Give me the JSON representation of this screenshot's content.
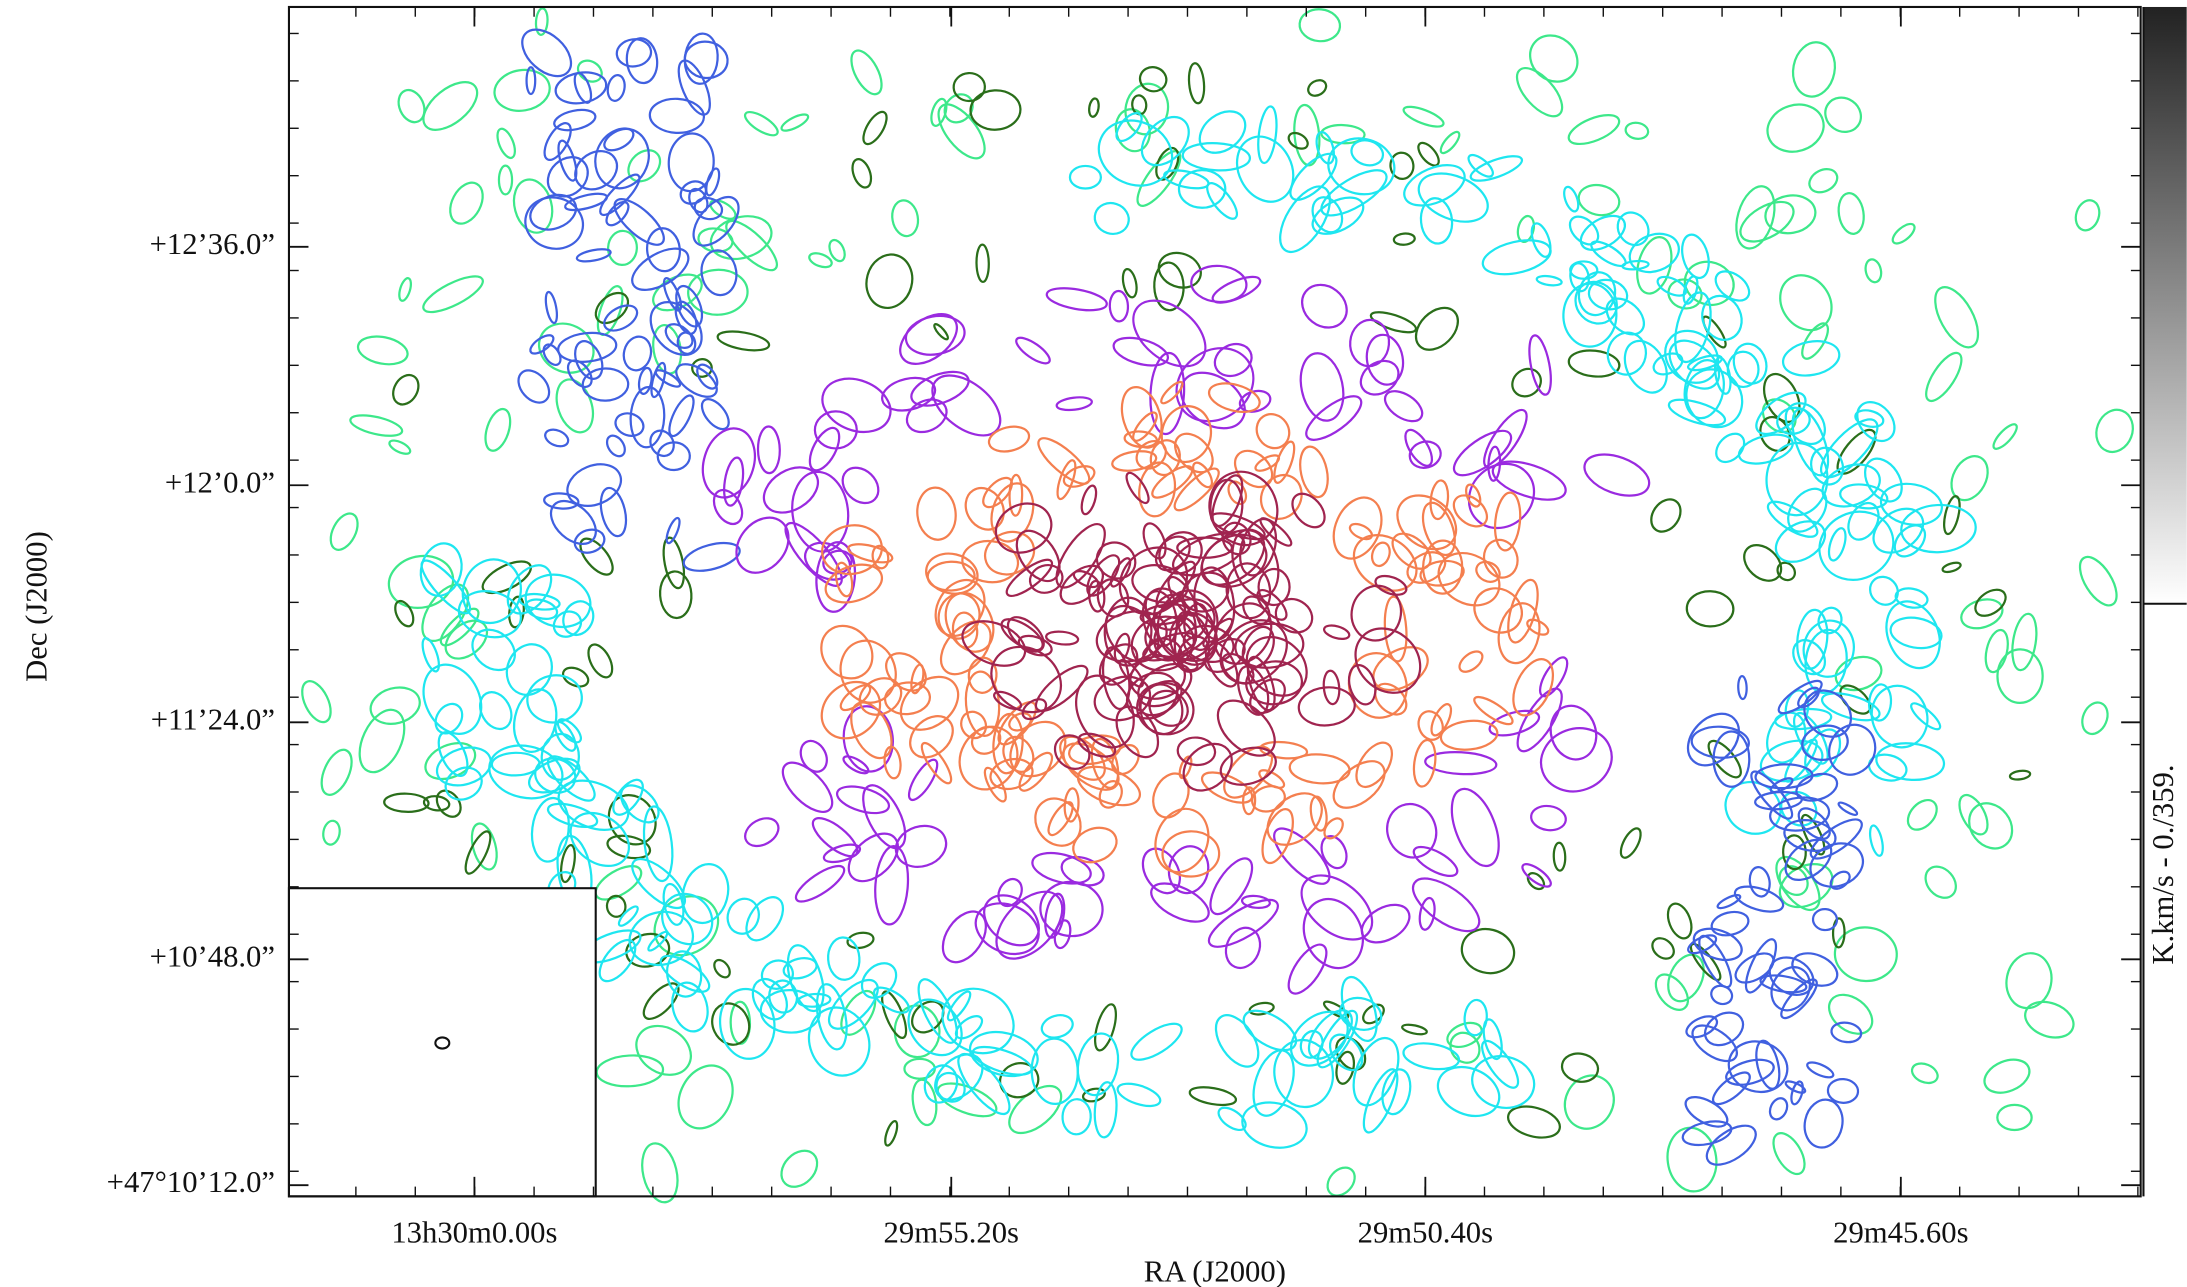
{
  "chart_data": {
    "type": "image",
    "xlabel": "RA (J2000)",
    "ylabel": "Dec (J2000)",
    "xtick_labels": [
      "13h30m0.00s",
      "29m55.20s",
      "29m50.40s",
      "29m45.60s"
    ],
    "ytick_labels": [
      "+12’36.0”",
      "+12’0.0”",
      "+11’24.0”",
      "+10’48.0”",
      "+47°10’12.0”"
    ],
    "colorbar_label": "K.km/s -  0./359."
  }
}
